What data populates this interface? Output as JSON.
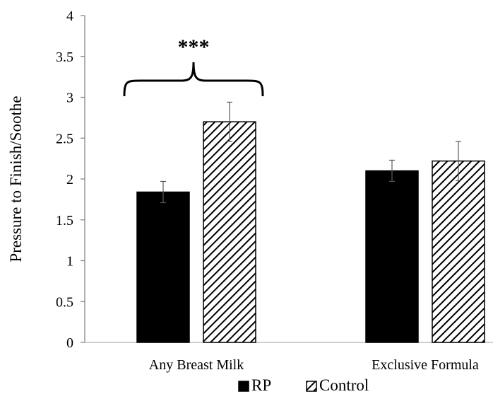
{
  "chart_data": {
    "type": "bar",
    "categories": [
      "Any Breast Milk",
      "Exclusive Formula"
    ],
    "series": [
      {
        "name": "RP",
        "values": [
          1.84,
          2.1
        ],
        "error": [
          0.13,
          0.13
        ],
        "fill": "#000000"
      },
      {
        "name": "Control",
        "values": [
          2.7,
          2.22
        ],
        "error": [
          0.24,
          0.24
        ],
        "fill": "hatched"
      }
    ],
    "ylabel": "Pressure to Finish/Soothe",
    "xlabel": "",
    "ylim": [
      0,
      4
    ],
    "yticks": [
      "0",
      "0.5",
      "1",
      "1.5",
      "2",
      "2.5",
      "3",
      "3.5",
      "4"
    ],
    "grid": false,
    "legend_position": "bottom",
    "annotations": [
      {
        "text": "***",
        "category": "Any Breast Milk",
        "type": "bracket"
      }
    ]
  }
}
